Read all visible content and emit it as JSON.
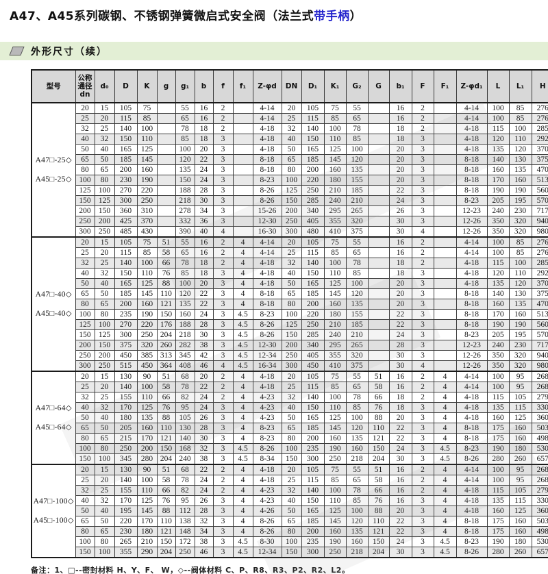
{
  "page": {
    "title": {
      "prefix": "A47、A45系列碳钢、不锈钢弹簧微启式安全阀（法兰式",
      "highlight": "带手柄",
      "suffix": "）"
    },
    "section_header": "外形尺寸（续）",
    "footnote": "备注：1、□--密封材料 H、Y、F、 W，◇--阀体材料  C、P、R8、R3、P2、R2、L2。",
    "colors": {
      "highlight_blue": "#2222cc",
      "section_bar_green": "#e3efd5",
      "table_header_gray": "#d8d8d8",
      "row_stripe_gray": "#e9e9e9"
    }
  },
  "table": {
    "headers": [
      "型号",
      "公称\n通径\ndn",
      "d₀",
      "D",
      "K",
      "g",
      "g₁",
      "b",
      "f",
      "f₁",
      "Z-φd",
      "DN",
      "D₁",
      "K₁",
      "G₂",
      "G",
      "b₁",
      "F",
      "F₁",
      "Z-φd₁",
      "L",
      "L₁",
      "H"
    ],
    "groups": [
      {
        "model": [
          "A47□-25◇",
          "A45□-25◇"
        ],
        "rows": [
          [
            20,
            15,
            105,
            75,
            "",
            55,
            16,
            2,
            "",
            "4-14",
            20,
            105,
            75,
            55,
            "",
            16,
            2,
            "",
            "4-14",
            100,
            85,
            276
          ],
          [
            25,
            20,
            115,
            85,
            "",
            65,
            16,
            2,
            "",
            "4-14",
            25,
            115,
            85,
            65,
            "",
            16,
            2,
            "",
            "4-14",
            100,
            85,
            276
          ],
          [
            32,
            25,
            140,
            100,
            "",
            78,
            18,
            2,
            "",
            "4-18",
            32,
            140,
            100,
            78,
            "",
            18,
            2,
            "",
            "4-18",
            115,
            100,
            285
          ],
          [
            40,
            32,
            150,
            110,
            "",
            85,
            18,
            3,
            "",
            "4-18",
            40,
            150,
            110,
            85,
            "",
            18,
            3,
            "",
            "4-18",
            120,
            110,
            292
          ],
          [
            50,
            40,
            165,
            125,
            "",
            100,
            20,
            3,
            "",
            "4-18",
            50,
            165,
            125,
            100,
            "",
            20,
            3,
            "",
            "4-18",
            135,
            120,
            370
          ],
          [
            65,
            50,
            185,
            145,
            "",
            120,
            22,
            3,
            "",
            "8-18",
            65,
            185,
            145,
            120,
            "",
            20,
            3,
            "",
            "8-18",
            140,
            130,
            375
          ],
          [
            80,
            65,
            200,
            160,
            "",
            135,
            24,
            3,
            "",
            "8-18",
            80,
            200,
            160,
            135,
            "",
            20,
            3,
            "",
            "8-18",
            160,
            135,
            470
          ],
          [
            100,
            80,
            230,
            190,
            "",
            150,
            24,
            3,
            "",
            "8-23",
            100,
            220,
            180,
            155,
            "",
            20,
            3,
            "",
            "8-18",
            170,
            160,
            513
          ],
          [
            125,
            100,
            270,
            220,
            "",
            188,
            28,
            3,
            "",
            "8-26",
            125,
            250,
            210,
            185,
            "",
            22,
            3,
            "",
            "8-18",
            190,
            190,
            560
          ],
          [
            150,
            125,
            300,
            250,
            "",
            218,
            30,
            3,
            "",
            "8-26",
            150,
            285,
            240,
            210,
            "",
            24,
            3,
            "",
            "8-23",
            205,
            195,
            570
          ],
          [
            200,
            150,
            360,
            310,
            "",
            278,
            34,
            3,
            "",
            "15-26",
            200,
            340,
            295,
            265,
            "",
            26,
            3,
            "",
            "12-23",
            240,
            230,
            717
          ],
          [
            250,
            200,
            425,
            370,
            "",
            332,
            36,
            3,
            "",
            "12-30",
            250,
            405,
            355,
            320,
            "",
            30,
            3,
            "",
            "12-26",
            350,
            320,
            940
          ],
          [
            300,
            250,
            485,
            430,
            "",
            390,
            40,
            4,
            "",
            "16-30",
            300,
            480,
            410,
            375,
            "",
            30,
            4,
            "",
            "12-26",
            350,
            320,
            980
          ]
        ]
      },
      {
        "model": [
          "A47□-40◇",
          "A45□-40◇"
        ],
        "rows": [
          [
            20,
            15,
            105,
            75,
            51,
            55,
            16,
            2,
            4,
            "4-14",
            20,
            105,
            75,
            55,
            "",
            16,
            2,
            "",
            "4-14",
            100,
            85,
            276
          ],
          [
            25,
            20,
            115,
            85,
            58,
            65,
            16,
            2,
            4,
            "4-14",
            25,
            115,
            85,
            65,
            "",
            16,
            2,
            "",
            "4-14",
            100,
            85,
            276
          ],
          [
            32,
            25,
            140,
            100,
            66,
            78,
            18,
            2,
            4,
            "4-18",
            32,
            140,
            100,
            78,
            "",
            18,
            2,
            "",
            "4-18",
            115,
            100,
            285
          ],
          [
            40,
            32,
            150,
            110,
            76,
            85,
            18,
            3,
            4,
            "4-18",
            40,
            150,
            110,
            85,
            "",
            18,
            3,
            "",
            "4-18",
            120,
            110,
            292
          ],
          [
            50,
            40,
            165,
            125,
            88,
            100,
            20,
            3,
            4,
            "4-18",
            50,
            165,
            125,
            100,
            "",
            20,
            3,
            "",
            "4-18",
            135,
            120,
            370
          ],
          [
            65,
            50,
            185,
            145,
            110,
            120,
            22,
            3,
            4,
            "8-18",
            65,
            185,
            145,
            120,
            "",
            20,
            3,
            "",
            "8-18",
            140,
            130,
            375
          ],
          [
            80,
            65,
            200,
            160,
            121,
            135,
            22,
            3,
            4,
            "8-18",
            80,
            200,
            160,
            135,
            "",
            20,
            3,
            "",
            "8-18",
            160,
            135,
            470
          ],
          [
            100,
            80,
            235,
            190,
            150,
            160,
            24,
            3,
            "4.5",
            "8-23",
            100,
            220,
            180,
            155,
            "",
            22,
            3,
            "",
            "8-18",
            170,
            160,
            513
          ],
          [
            125,
            100,
            270,
            220,
            176,
            188,
            28,
            3,
            "4.5",
            "8-26",
            125,
            250,
            210,
            185,
            "",
            22,
            3,
            "",
            "8-18",
            190,
            190,
            560
          ],
          [
            150,
            125,
            300,
            250,
            204,
            218,
            30,
            3,
            "4.5",
            "8-26",
            150,
            285,
            240,
            210,
            "",
            24,
            3,
            "",
            "8-23",
            205,
            195,
            570
          ],
          [
            200,
            150,
            375,
            320,
            260,
            282,
            38,
            3,
            "4.5",
            "12-30",
            200,
            340,
            295,
            265,
            "",
            28,
            3,
            "",
            "12-23",
            240,
            230,
            717
          ],
          [
            250,
            200,
            450,
            385,
            313,
            345,
            42,
            3,
            "4.5",
            "12-34",
            250,
            405,
            355,
            320,
            "",
            30,
            3,
            "",
            "12-26",
            350,
            320,
            940
          ],
          [
            300,
            250,
            515,
            450,
            364,
            408,
            46,
            4,
            "4.5",
            "16-34",
            300,
            450,
            410,
            375,
            "",
            30,
            4,
            "",
            "12-26",
            350,
            320,
            980
          ]
        ]
      },
      {
        "model": [
          "A47□-64◇",
          "A45□-64◇"
        ],
        "rows": [
          [
            20,
            15,
            130,
            90,
            51,
            68,
            20,
            2,
            4,
            "4-18",
            20,
            105,
            75,
            55,
            51,
            16,
            2,
            4,
            "4-14",
            100,
            95,
            268
          ],
          [
            25,
            20,
            140,
            100,
            58,
            78,
            22,
            2,
            4,
            "4-18",
            25,
            115,
            85,
            65,
            58,
            16,
            2,
            4,
            "4-14",
            100,
            95,
            268
          ],
          [
            32,
            25,
            155,
            110,
            66,
            82,
            24,
            2,
            4,
            "4-23",
            32,
            140,
            100,
            78,
            66,
            18,
            2,
            4,
            "4-18",
            115,
            105,
            279
          ],
          [
            40,
            32,
            170,
            125,
            76,
            95,
            24,
            3,
            4,
            "4-23",
            40,
            150,
            110,
            85,
            76,
            18,
            3,
            4,
            "4-18",
            135,
            115,
            330
          ],
          [
            50,
            40,
            180,
            135,
            88,
            105,
            26,
            3,
            4,
            "4-23",
            50,
            165,
            125,
            100,
            88,
            20,
            3,
            4,
            "4-18",
            160,
            125,
            360
          ],
          [
            65,
            50,
            205,
            160,
            110,
            130,
            28,
            3,
            4,
            "8-23",
            65,
            185,
            145,
            120,
            110,
            22,
            3,
            4,
            "8-18",
            175,
            160,
            503
          ],
          [
            80,
            65,
            215,
            170,
            121,
            140,
            30,
            3,
            4,
            "8-23",
            80,
            200,
            160,
            135,
            121,
            22,
            3,
            4,
            "8-18",
            175,
            160,
            498
          ],
          [
            100,
            80,
            250,
            200,
            150,
            168,
            32,
            3,
            "4.5",
            "8-26",
            100,
            235,
            190,
            160,
            150,
            24,
            3,
            "4.5",
            "8-23",
            190,
            180,
            530
          ],
          [
            150,
            100,
            345,
            280,
            204,
            240,
            38,
            3,
            "4.5",
            "8-34",
            150,
            300,
            250,
            218,
            204,
            30,
            3,
            "4.5",
            "8-26",
            280,
            260,
            657
          ]
        ]
      },
      {
        "model": [
          "A47□-100◇",
          "A45□-100◇"
        ],
        "rows": [
          [
            20,
            15,
            130,
            90,
            51,
            68,
            22,
            2,
            4,
            "4-18",
            20,
            105,
            75,
            55,
            51,
            16,
            2,
            4,
            "4-14",
            100,
            95,
            268
          ],
          [
            25,
            20,
            140,
            100,
            58,
            78,
            24,
            2,
            4,
            "4-18",
            25,
            115,
            85,
            65,
            58,
            16,
            2,
            4,
            "4-14",
            100,
            95,
            268
          ],
          [
            32,
            25,
            155,
            110,
            66,
            82,
            24,
            2,
            4,
            "4-23",
            32,
            140,
            100,
            78,
            66,
            16,
            2,
            4,
            "4-18",
            115,
            105,
            279
          ],
          [
            40,
            32,
            170,
            125,
            76,
            95,
            26,
            3,
            4,
            "4-23",
            40,
            150,
            110,
            85,
            76,
            16,
            3,
            4,
            "4-18",
            135,
            115,
            330
          ],
          [
            50,
            40,
            195,
            145,
            88,
            112,
            28,
            3,
            4,
            "4-26",
            50,
            165,
            125,
            100,
            88,
            20,
            3,
            4,
            "4-18",
            160,
            125,
            360
          ],
          [
            65,
            50,
            220,
            170,
            110,
            138,
            32,
            3,
            4,
            "8-26",
            65,
            185,
            145,
            120,
            110,
            22,
            3,
            4,
            "8-18",
            175,
            160,
            503
          ],
          [
            80,
            65,
            230,
            180,
            121,
            148,
            34,
            3,
            4,
            "8-26",
            80,
            200,
            160,
            135,
            121,
            22,
            3,
            4,
            "8-18",
            175,
            160,
            498
          ],
          [
            100,
            80,
            265,
            210,
            150,
            172,
            38,
            3,
            "4.5",
            "8-30",
            100,
            235,
            190,
            160,
            150,
            24,
            3,
            "4.5",
            "8-23",
            190,
            180,
            530
          ],
          [
            150,
            100,
            355,
            290,
            204,
            250,
            46,
            3,
            "4.5",
            "12-34",
            150,
            300,
            250,
            218,
            204,
            30,
            3,
            "4.5",
            "8-26",
            280,
            260,
            657
          ]
        ]
      }
    ]
  }
}
